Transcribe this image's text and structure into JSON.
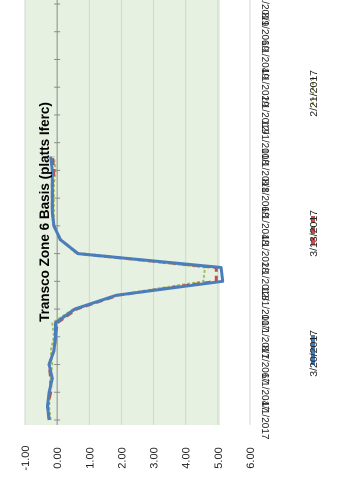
{
  "chart_data": {
    "type": "line",
    "orientation": "rotated-90-clockwise",
    "title": "Transco Zone 6  Basis (platts Iferc)",
    "ylim": [
      -1,
      6
    ],
    "yticks": [
      -1,
      0,
      1,
      2,
      3,
      4,
      5,
      6
    ],
    "ytick_labels": [
      "-1.00",
      "0.00",
      "1.00",
      "2.00",
      "3.00",
      "4.00",
      "5.00",
      "6.00"
    ],
    "xticks": [
      "4/1/2017",
      "6/1/2017",
      "8/1/2017",
      "10/1/2017",
      "12/1/2017",
      "2/1/2018",
      "4/1/2018",
      "6/1/2018",
      "8/1/2018",
      "10/1/2018",
      "12/1/2018",
      "2/1/2019",
      "4/1/2019",
      "6/1/2019",
      "8/1/2019",
      "10/1/2019"
    ],
    "x_range_months": [
      0,
      30
    ],
    "grid": "y-major",
    "background": "#e6f1e1",
    "legend_position": "bottom",
    "series": [
      {
        "name": "3/20/2017",
        "color": "#4a7ebb",
        "style": "solid",
        "x": [
          "4/1/2017",
          "5/1/2017",
          "6/1/2017",
          "7/1/2017",
          "8/1/2017",
          "9/1/2017",
          "10/1/2017",
          "11/1/2017",
          "12/1/2017",
          "1/1/2018",
          "2/1/2018",
          "3/1/2018",
          "4/1/2018",
          "5/1/2018",
          "6/1/2018",
          "7/1/2018",
          "8/1/2018",
          "9/1/2018",
          "10/1/2018",
          "11/1/2018"
        ],
        "y": [
          -0.25,
          -0.3,
          -0.25,
          -0.15,
          -0.25,
          -0.1,
          -0.05,
          -0.05,
          0.55,
          1.85,
          5.15,
          5.1,
          0.65,
          0.1,
          -0.1,
          -0.15,
          -0.15,
          -0.15,
          -0.15,
          -0.2
        ]
      },
      {
        "name": "3/13/2017",
        "color": "#c0504d",
        "style": "dashed",
        "x": [
          "4/1/2017",
          "5/1/2017",
          "6/1/2017",
          "7/1/2017",
          "8/1/2017",
          "9/1/2017",
          "10/1/2017",
          "11/1/2017",
          "12/1/2017",
          "1/1/2018",
          "2/1/2018",
          "3/1/2018",
          "4/1/2018",
          "5/1/2018",
          "6/1/2018",
          "7/1/2018",
          "8/1/2018",
          "9/1/2018",
          "10/1/2018",
          "11/1/2018"
        ],
        "y": [
          -0.25,
          -0.3,
          -0.2,
          -0.2,
          -0.25,
          -0.1,
          -0.05,
          0.0,
          0.6,
          1.9,
          4.95,
          4.95,
          0.65,
          0.1,
          -0.1,
          -0.15,
          -0.15,
          -0.15,
          -0.1,
          -0.15
        ]
      },
      {
        "name": "2/21/2017",
        "color": "#9bbb59",
        "style": "dashed",
        "x": [
          "4/1/2017",
          "5/1/2017",
          "6/1/2017",
          "7/1/2017",
          "8/1/2017",
          "9/1/2017",
          "10/1/2017",
          "11/1/2017",
          "12/1/2017",
          "1/1/2018",
          "2/1/2018",
          "3/1/2018",
          "4/1/2018",
          "5/1/2018",
          "6/1/2018",
          "7/1/2018",
          "8/1/2018",
          "9/1/2018",
          "10/1/2018",
          "11/1/2018"
        ],
        "y": [
          -0.2,
          -0.25,
          -0.2,
          -0.2,
          -0.15,
          -0.2,
          -0.1,
          -0.15,
          0.5,
          1.8,
          4.55,
          4.6,
          0.6,
          0.1,
          -0.1,
          -0.1,
          -0.1,
          -0.1,
          -0.05,
          -0.1
        ]
      }
    ]
  }
}
